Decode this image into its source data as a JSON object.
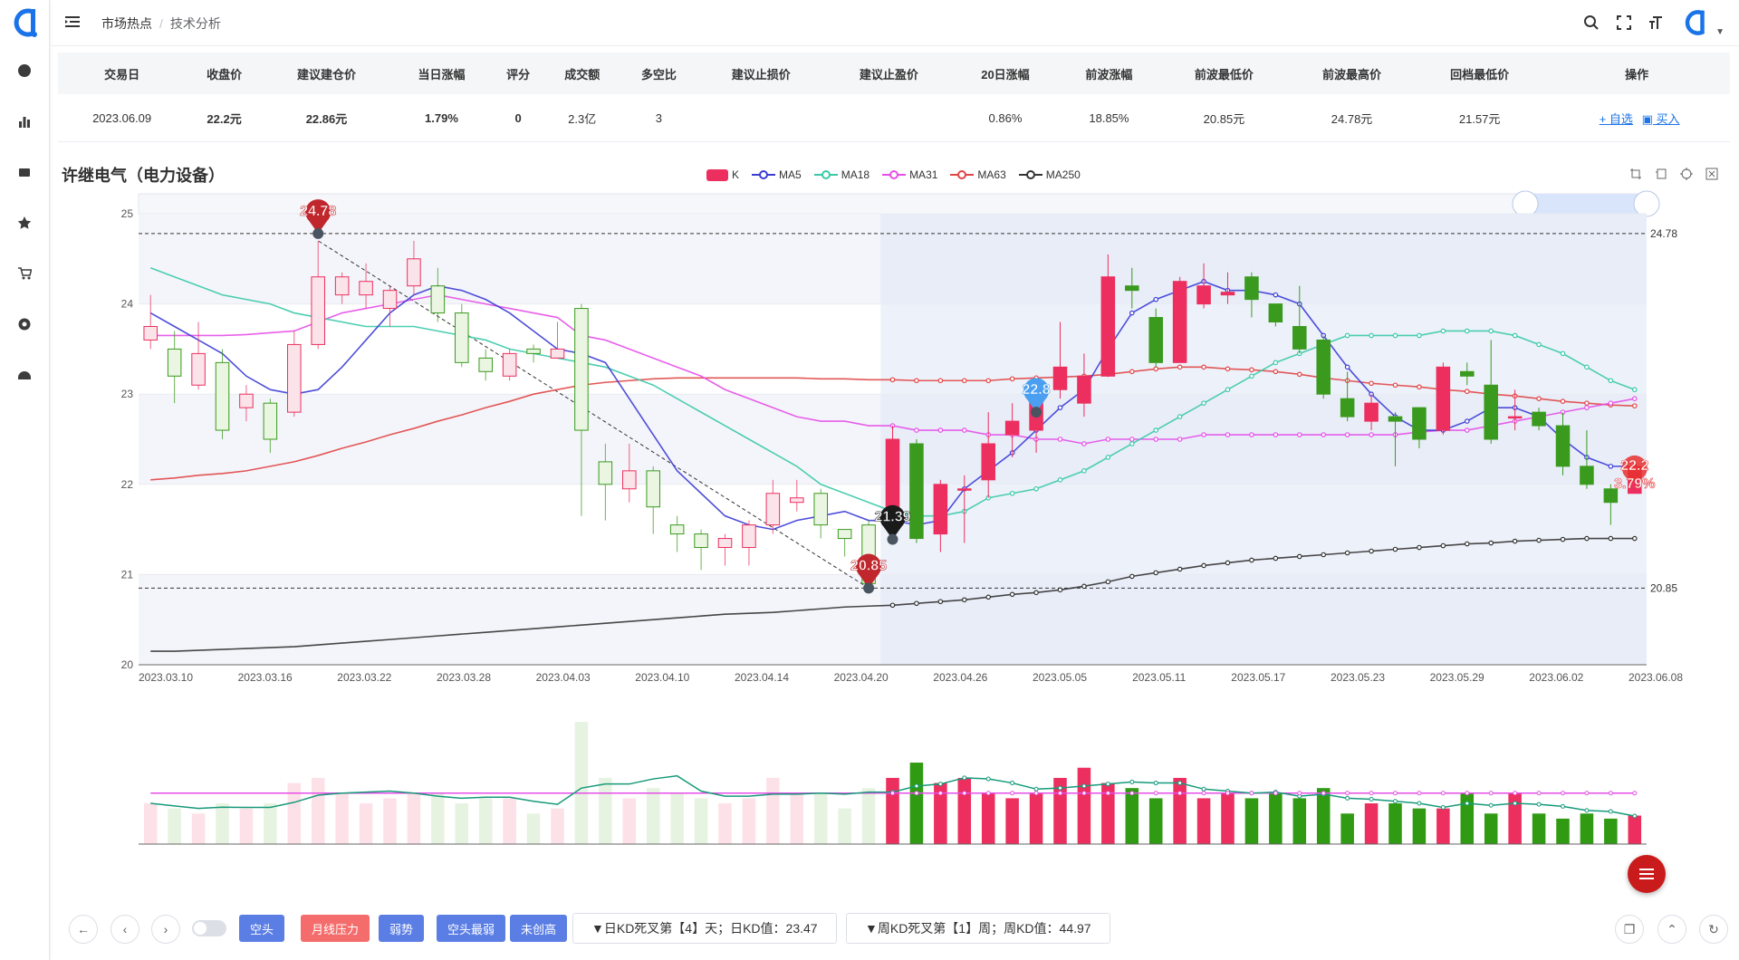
{
  "header": {
    "breadcrumb": [
      "市场热点",
      "技术分析"
    ]
  },
  "table": {
    "columns": [
      "交易日",
      "收盘价",
      "建议建仓价",
      "当日涨幅",
      "评分",
      "成交额",
      "多空比",
      "建议止损价",
      "建议止盈价",
      "20日涨幅",
      "前波涨幅",
      "前波最低价",
      "前波最高价",
      "回档最低价",
      "操作"
    ],
    "row": {
      "date": "2023.06.09",
      "close": "22.2元",
      "suggest_build": "22.86元",
      "day_change": "1.79%",
      "score": "0",
      "turnover": "2.3亿",
      "long_short": "3",
      "stop_loss": "",
      "take_profit": "",
      "change20": "0.86%",
      "prev_wave_change": "18.85%",
      "prev_wave_low": "20.85元",
      "prev_wave_high": "24.78元",
      "pullback_low": "21.57元",
      "op_add": "+ 自选",
      "op_buy": "买入"
    }
  },
  "stock": {
    "title": "许继电气（电力设备）"
  },
  "legend": [
    "K",
    "MA5",
    "MA18",
    "MA31",
    "MA63",
    "MA250"
  ],
  "colors": {
    "up": "#ec2f5e",
    "down": "#3a9a1e",
    "ma5": "#3b3bd6",
    "ma18": "#3ac9a8",
    "ma31": "#e64ee8",
    "ma63": "#e04545",
    "ma250": "#333333"
  },
  "chart_data": {
    "type": "candlestick",
    "yticks": [
      25,
      24,
      23,
      22,
      21,
      20
    ],
    "ylim": [
      20,
      25
    ],
    "xticks": [
      "2023.03.10",
      "2023.03.16",
      "2023.03.22",
      "2023.03.28",
      "2023.04.03",
      "2023.04.10",
      "2023.04.14",
      "2023.04.20",
      "2023.04.26",
      "2023.05.05",
      "2023.05.11",
      "2023.05.17",
      "2023.05.23",
      "2023.05.29",
      "2023.06.02",
      "2023.06.08"
    ],
    "candles": [
      [
        23.6,
        23.75,
        24.1,
        23.5
      ],
      [
        23.5,
        23.2,
        23.7,
        22.9
      ],
      [
        23.1,
        23.45,
        23.8,
        23.05
      ],
      [
        23.35,
        22.6,
        23.5,
        22.5
      ],
      [
        22.85,
        23.0,
        23.1,
        22.7
      ],
      [
        22.9,
        22.5,
        22.95,
        22.35
      ],
      [
        22.8,
        23.55,
        23.7,
        22.75
      ],
      [
        23.55,
        24.3,
        24.7,
        23.5
      ],
      [
        24.1,
        24.3,
        24.35,
        24.0
      ],
      [
        24.1,
        24.25,
        24.45,
        23.95
      ],
      [
        23.95,
        24.15,
        24.2,
        23.75
      ],
      [
        24.2,
        24.5,
        24.7,
        24.1
      ],
      [
        24.2,
        23.9,
        24.4,
        23.8
      ],
      [
        23.9,
        23.35,
        24.0,
        23.3
      ],
      [
        23.4,
        23.25,
        23.5,
        23.15
      ],
      [
        23.2,
        23.45,
        23.5,
        23.15
      ],
      [
        23.5,
        23.45,
        23.55,
        23.35
      ],
      [
        23.4,
        23.5,
        23.8,
        23.4
      ],
      [
        23.95,
        22.6,
        24.0,
        21.65
      ],
      [
        22.25,
        22.0,
        22.45,
        21.6
      ],
      [
        21.95,
        22.15,
        22.45,
        21.8
      ],
      [
        22.15,
        21.75,
        22.2,
        21.45
      ],
      [
        21.55,
        21.45,
        21.65,
        21.25
      ],
      [
        21.45,
        21.3,
        21.5,
        21.05
      ],
      [
        21.3,
        21.4,
        21.45,
        21.1
      ],
      [
        21.3,
        21.55,
        21.6,
        21.1
      ],
      [
        21.55,
        21.9,
        22.05,
        21.45
      ],
      [
        21.8,
        21.85,
        22.05,
        21.7
      ],
      [
        21.9,
        21.55,
        21.95,
        21.4
      ],
      [
        21.5,
        21.4,
        21.5,
        21.2
      ],
      [
        21.55,
        20.9,
        21.6,
        20.85
      ],
      [
        21.6,
        22.5,
        22.65,
        21.5
      ],
      [
        22.45,
        21.4,
        22.5,
        21.35
      ],
      [
        21.45,
        22.0,
        22.05,
        21.25
      ],
      [
        21.95,
        21.95,
        22.1,
        21.35
      ],
      [
        22.05,
        22.45,
        22.8,
        21.85
      ],
      [
        22.55,
        22.7,
        22.9,
        22.3
      ],
      [
        22.6,
        22.95,
        23.15,
        22.35
      ],
      [
        23.05,
        23.3,
        23.8,
        22.95
      ],
      [
        22.9,
        23.2,
        23.45,
        22.75
      ],
      [
        23.2,
        24.3,
        24.55,
        23.2
      ],
      [
        24.2,
        24.15,
        24.4,
        23.95
      ],
      [
        23.85,
        23.35,
        23.95,
        23.3
      ],
      [
        23.35,
        24.25,
        24.3,
        23.35
      ],
      [
        24.0,
        24.2,
        24.45,
        23.95
      ],
      [
        24.1,
        24.13,
        24.35,
        24.0
      ],
      [
        24.3,
        24.05,
        24.35,
        23.85
      ],
      [
        24.0,
        23.8,
        24.0,
        23.75
      ],
      [
        23.75,
        23.5,
        24.2,
        23.45
      ],
      [
        23.6,
        23.0,
        23.65,
        22.95
      ],
      [
        22.95,
        22.75,
        23.25,
        22.7
      ],
      [
        22.7,
        22.9,
        23.0,
        22.6
      ],
      [
        22.75,
        22.7,
        22.8,
        22.2
      ],
      [
        22.85,
        22.5,
        22.85,
        22.4
      ],
      [
        22.6,
        23.3,
        23.35,
        22.55
      ],
      [
        23.25,
        23.2,
        23.35,
        23.1
      ],
      [
        23.1,
        22.5,
        23.6,
        22.45
      ],
      [
        22.75,
        22.75,
        23.05,
        22.6
      ],
      [
        22.8,
        22.65,
        22.85,
        22.6
      ],
      [
        22.65,
        22.2,
        22.8,
        22.1
      ],
      [
        22.2,
        22.0,
        22.6,
        21.95
      ],
      [
        21.95,
        21.8,
        22.0,
        21.55
      ],
      [
        21.9,
        22.2,
        22.25,
        21.9
      ]
    ],
    "ma5": [
      23.9,
      23.75,
      23.6,
      23.45,
      23.2,
      23.05,
      23.0,
      23.05,
      23.3,
      23.6,
      23.9,
      24.1,
      24.2,
      24.15,
      24.05,
      23.9,
      23.7,
      23.5,
      23.45,
      23.35,
      22.95,
      22.55,
      22.15,
      21.9,
      21.65,
      21.55,
      21.5,
      21.6,
      21.65,
      21.7,
      21.6,
      21.6,
      21.55,
      21.6,
      21.95,
      22.15,
      22.35,
      22.6,
      22.85,
      23.05,
      23.5,
      23.9,
      24.05,
      24.15,
      24.25,
      24.15,
      24.15,
      24.1,
      24.0,
      23.65,
      23.3,
      23.0,
      22.75,
      22.6,
      22.6,
      22.7,
      22.85,
      22.85,
      22.75,
      22.5,
      22.3,
      22.2,
      22.2
    ],
    "ma18": [
      24.4,
      24.3,
      24.2,
      24.1,
      24.05,
      24.0,
      23.9,
      23.85,
      23.8,
      23.75,
      23.75,
      23.75,
      23.7,
      23.65,
      23.6,
      23.5,
      23.45,
      23.4,
      23.35,
      23.3,
      23.2,
      23.1,
      22.95,
      22.8,
      22.65,
      22.5,
      22.35,
      22.2,
      22.0,
      21.9,
      21.8,
      21.7,
      21.65,
      21.65,
      21.7,
      21.85,
      21.9,
      21.95,
      22.05,
      22.15,
      22.3,
      22.45,
      22.6,
      22.75,
      22.9,
      23.05,
      23.2,
      23.35,
      23.45,
      23.55,
      23.65,
      23.65,
      23.65,
      23.65,
      23.7,
      23.7,
      23.7,
      23.65,
      23.55,
      23.45,
      23.3,
      23.15,
      23.05
    ],
    "ma31": [
      23.65,
      23.65,
      23.65,
      23.65,
      23.66,
      23.68,
      23.7,
      23.8,
      23.9,
      23.95,
      24.0,
      24.05,
      24.1,
      24.05,
      24.0,
      23.95,
      23.9,
      23.85,
      23.65,
      23.6,
      23.5,
      23.4,
      23.3,
      23.2,
      23.05,
      22.95,
      22.85,
      22.75,
      22.7,
      22.7,
      22.65,
      22.65,
      22.6,
      22.6,
      22.6,
      22.55,
      22.55,
      22.5,
      22.5,
      22.45,
      22.5,
      22.5,
      22.5,
      22.5,
      22.55,
      22.55,
      22.55,
      22.55,
      22.55,
      22.55,
      22.55,
      22.55,
      22.55,
      22.58,
      22.6,
      22.6,
      22.65,
      22.7,
      22.75,
      22.8,
      22.85,
      22.9,
      22.95
    ],
    "ma63": [
      22.05,
      22.07,
      22.1,
      22.12,
      22.15,
      22.2,
      22.25,
      22.32,
      22.4,
      22.47,
      22.55,
      22.62,
      22.7,
      22.77,
      22.85,
      22.92,
      23.0,
      23.05,
      23.1,
      23.13,
      23.15,
      23.17,
      23.18,
      23.18,
      23.18,
      23.18,
      23.18,
      23.18,
      23.17,
      23.17,
      23.16,
      23.16,
      23.15,
      23.15,
      23.15,
      23.15,
      23.17,
      23.18,
      23.19,
      23.2,
      23.22,
      23.25,
      23.28,
      23.3,
      23.3,
      23.28,
      23.27,
      23.25,
      23.22,
      23.18,
      23.15,
      23.12,
      23.1,
      23.08,
      23.05,
      23.03,
      23.0,
      22.98,
      22.95,
      22.92,
      22.9,
      22.88,
      22.87
    ],
    "ma250": [
      20.15,
      20.15,
      20.16,
      20.17,
      20.18,
      20.19,
      20.2,
      20.22,
      20.24,
      20.26,
      20.28,
      20.3,
      20.32,
      20.34,
      20.36,
      20.38,
      20.4,
      20.42,
      20.44,
      20.46,
      20.48,
      20.5,
      20.52,
      20.54,
      20.56,
      20.57,
      20.58,
      20.6,
      20.62,
      20.64,
      20.65,
      20.66,
      20.68,
      20.7,
      20.72,
      20.75,
      20.78,
      20.8,
      20.83,
      20.87,
      20.92,
      20.98,
      21.02,
      21.06,
      21.1,
      21.13,
      21.16,
      21.18,
      21.2,
      21.22,
      21.24,
      21.26,
      21.28,
      21.3,
      21.32,
      21.34,
      21.35,
      21.37,
      21.38,
      21.39,
      21.4,
      21.4,
      21.4
    ],
    "volume": [
      0.4,
      0.35,
      0.3,
      0.4,
      0.35,
      0.4,
      0.6,
      0.65,
      0.5,
      0.4,
      0.45,
      0.5,
      0.5,
      0.4,
      0.45,
      0.45,
      0.3,
      0.35,
      1.2,
      0.65,
      0.45,
      0.55,
      0.5,
      0.45,
      0.4,
      0.45,
      0.65,
      0.5,
      0.5,
      0.35,
      0.55,
      0.65,
      0.8,
      0.6,
      0.65,
      0.5,
      0.45,
      0.5,
      0.65,
      0.75,
      0.6,
      0.55,
      0.45,
      0.65,
      0.45,
      0.5,
      0.45,
      0.5,
      0.45,
      0.55,
      0.3,
      0.4,
      0.4,
      0.35,
      0.35,
      0.5,
      0.3,
      0.5,
      0.3,
      0.25,
      0.3,
      0.25,
      0.28
    ],
    "markers": [
      {
        "label": "24.78",
        "value": 24.78
      },
      {
        "label": "20.85",
        "value": 20.85
      },
      {
        "label": "22.8",
        "value": 22.8
      },
      {
        "label": "21.39",
        "value": 21.39
      },
      {
        "label": "22.2",
        "value": 22.2
      },
      {
        "label": "3.79%",
        "value": 22.0
      }
    ],
    "hlines": [
      {
        "label": "24.78",
        "value": 24.78
      },
      {
        "label": "20.85",
        "value": 20.85
      }
    ]
  },
  "bottom": {
    "tags": [
      "空头",
      "月线压力",
      "弱势",
      "空头最弱",
      "未创高"
    ],
    "kd_day": "▼日KD死叉第【4】天；日KD值：23.47",
    "kd_week": "▼周KD死叉第【1】周；周KD值：44.97"
  }
}
